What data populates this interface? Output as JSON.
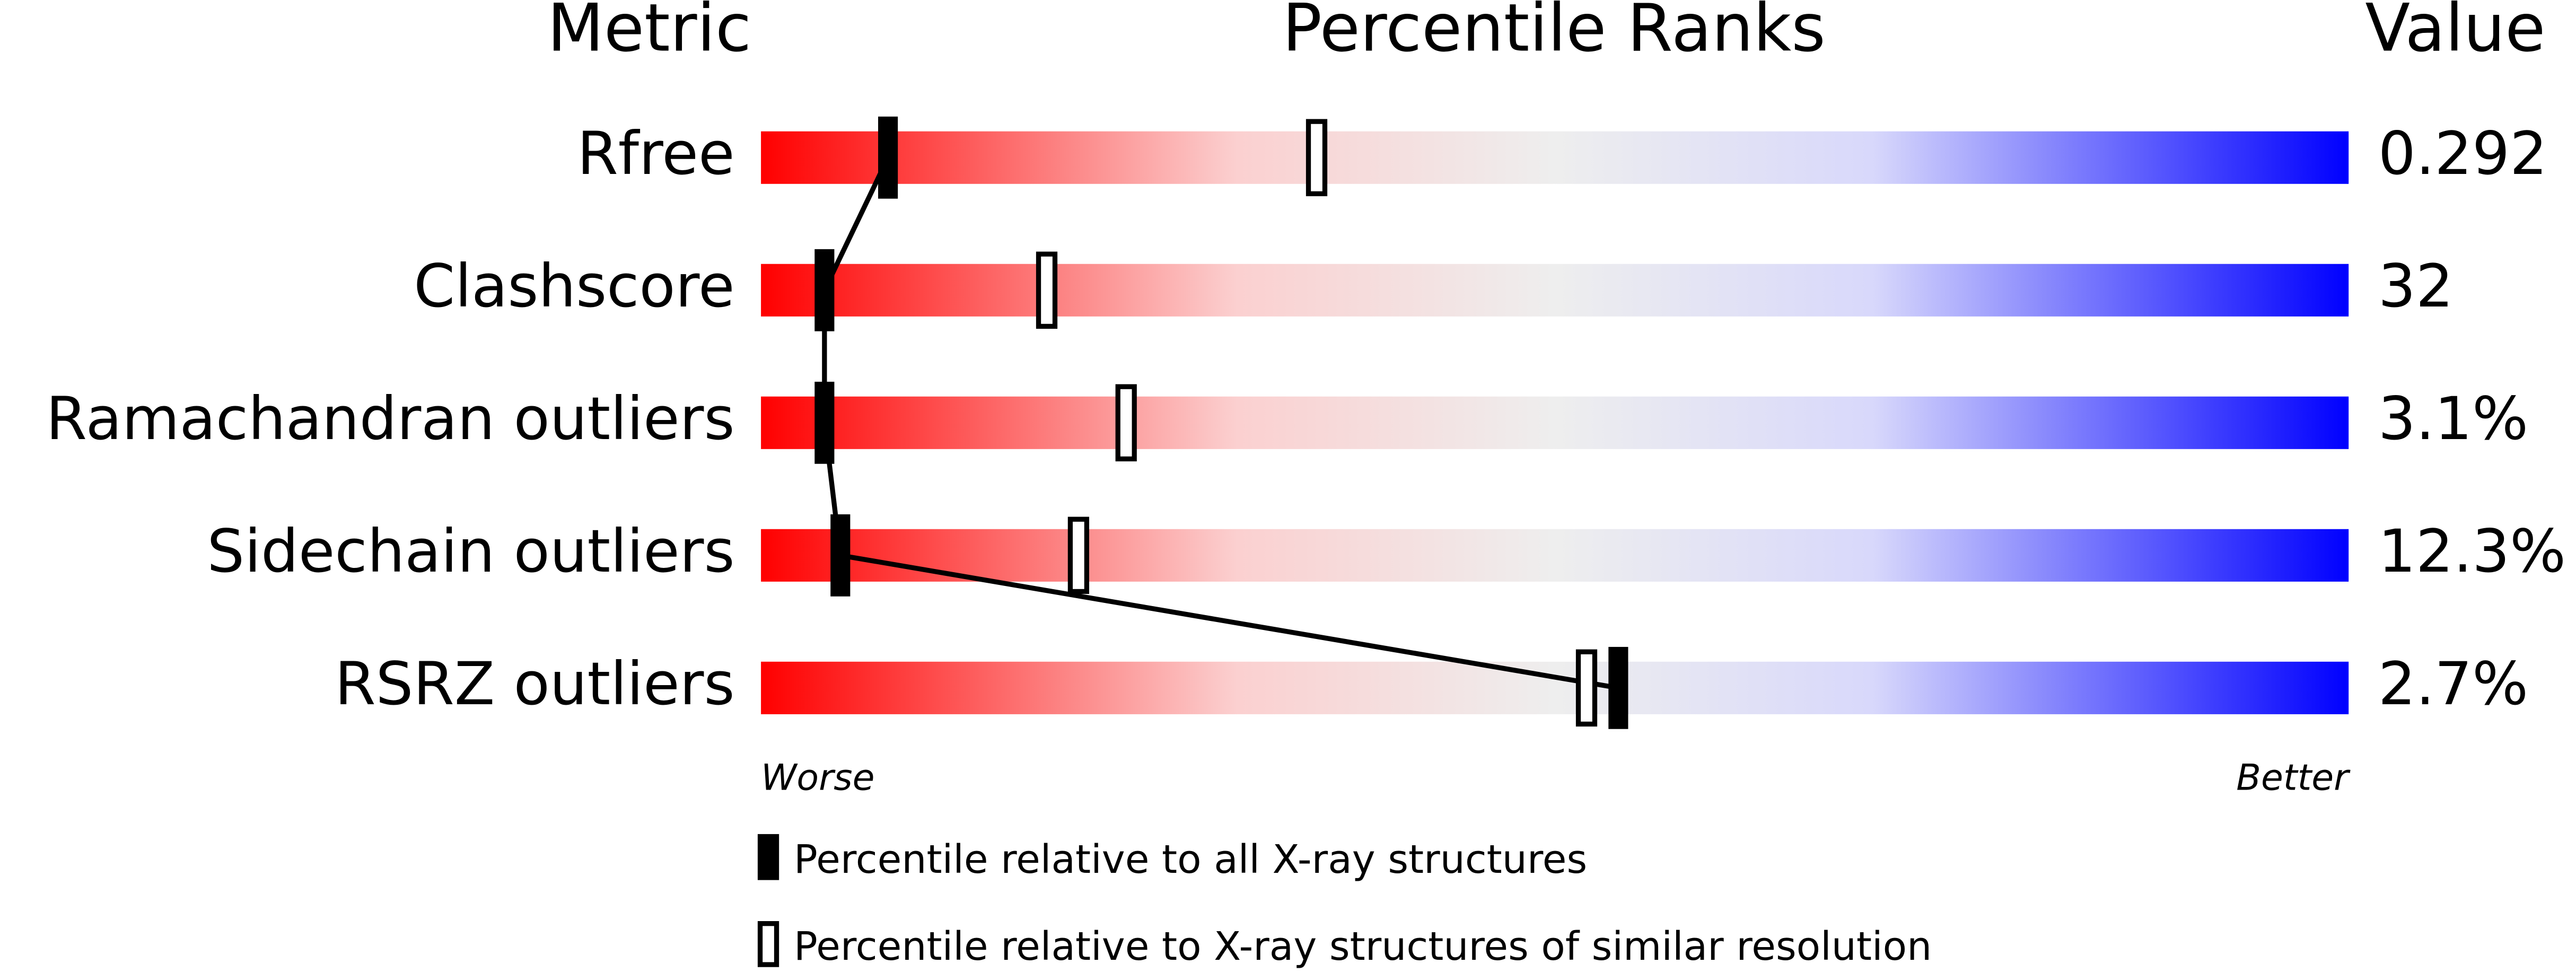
{
  "chart_data": {
    "type": "percentile",
    "title": "Percentile Ranks",
    "metric_header": "Metric",
    "value_header": "Value",
    "categories": [
      "Rfree",
      "Clashscore",
      "Ramachandran outliers",
      "Sidechain outliers",
      "RSRZ outliers"
    ],
    "metric_values": [
      "0.292",
      "32",
      "3.1%",
      "12.3%",
      "2.7%"
    ],
    "xlim": [
      0,
      100
    ],
    "worse_label": "Worse",
    "better_label": "Better",
    "series": [
      {
        "name": "Percentile relative to all X-ray structures",
        "color": "#000000",
        "style": "filled",
        "values": [
          8,
          4,
          4,
          5,
          54
        ]
      },
      {
        "name": "Percentile relative to X-ray structures of similar resolution",
        "color": "#000000",
        "style": "open",
        "values": [
          35,
          18,
          23,
          20,
          52
        ]
      }
    ]
  }
}
